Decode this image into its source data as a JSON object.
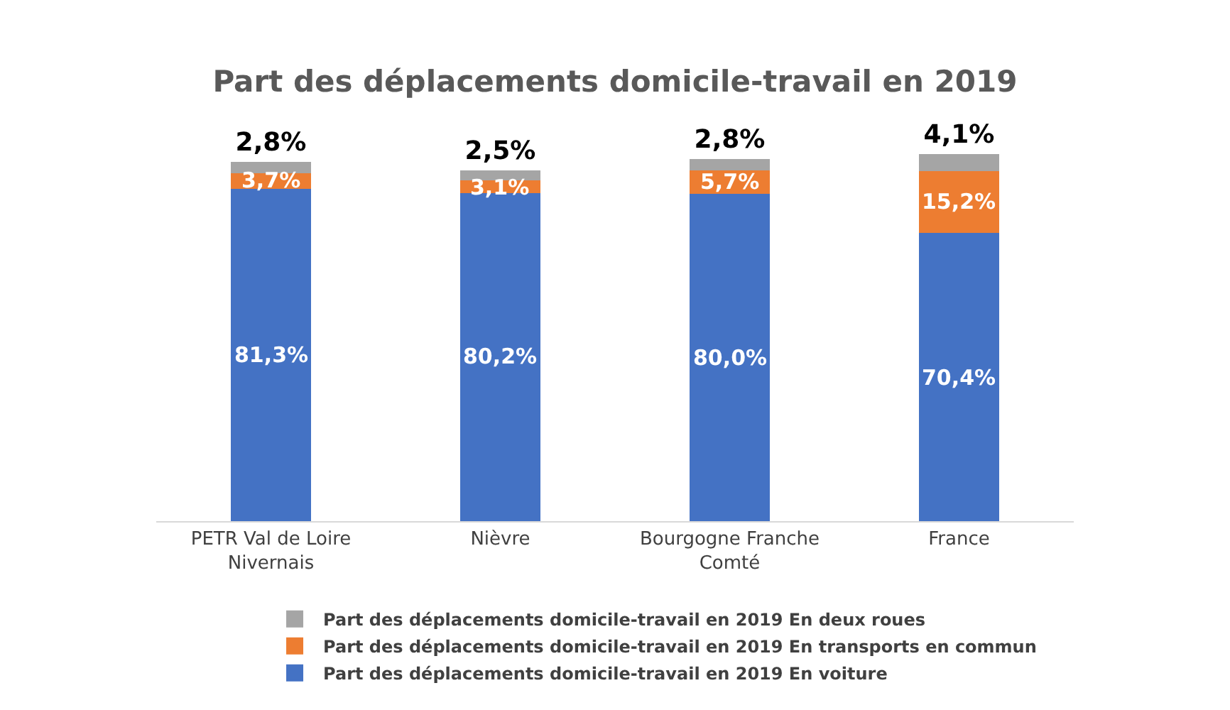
{
  "chart_data": {
    "type": "bar",
    "title": "Part des déplacements domicile-travail en 2019",
    "categories": [
      "PETR Val de Loire Nivernais",
      "Nièvre",
      "Bourgogne Franche Comté",
      "France"
    ],
    "stacked": true,
    "legend": "bottom",
    "grid": false,
    "series": [
      {
        "name": "Part des déplacements domicile-travail en 2019 En voiture",
        "color": "#4472c4",
        "values": [
          81.3,
          80.2,
          80.0,
          70.4
        ],
        "value_labels": [
          "81,3%",
          "80,2%",
          "80,0%",
          "70,4%"
        ]
      },
      {
        "name": "Part des déplacements domicile-travail en 2019 En transports en commun",
        "color": "#ed7d31",
        "values": [
          3.7,
          3.1,
          5.7,
          15.2
        ],
        "value_labels": [
          "3,7%",
          "3,1%",
          "5,7%",
          "15,2%"
        ]
      },
      {
        "name": "Part des déplacements domicile-travail en 2019 En deux roues",
        "color": "#a5a5a5",
        "values": [
          2.8,
          2.5,
          2.8,
          4.1
        ],
        "value_labels": [
          "2,8%",
          "2,5%",
          "2,8%",
          "4,1%"
        ]
      }
    ]
  }
}
